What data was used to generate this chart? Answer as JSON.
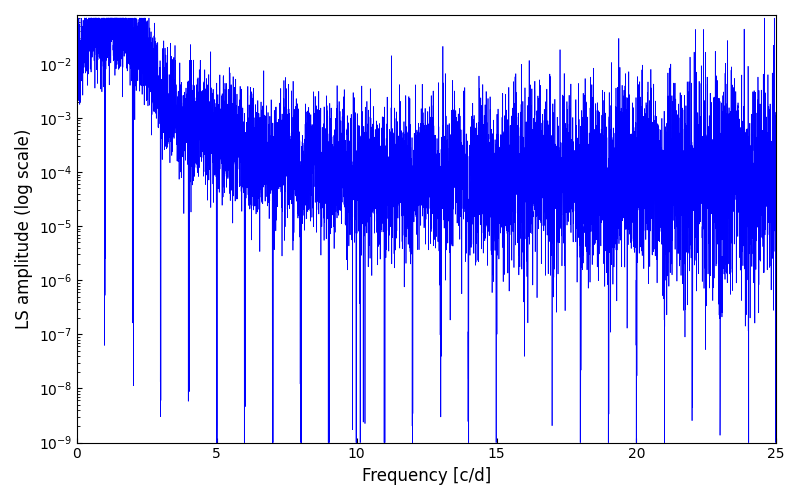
{
  "title": "",
  "xlabel": "Frequency [c/d]",
  "ylabel": "LS amplitude (log scale)",
  "xlim": [
    0,
    25
  ],
  "ylim": [
    1e-09,
    0.08
  ],
  "line_color": "#0000FF",
  "line_width": 0.5,
  "figsize": [
    8.0,
    5.0
  ],
  "dpi": 100,
  "yscale": "log",
  "seed": 12345,
  "n_points": 8000,
  "freq_max": 25.0,
  "background_color": "#ffffff"
}
